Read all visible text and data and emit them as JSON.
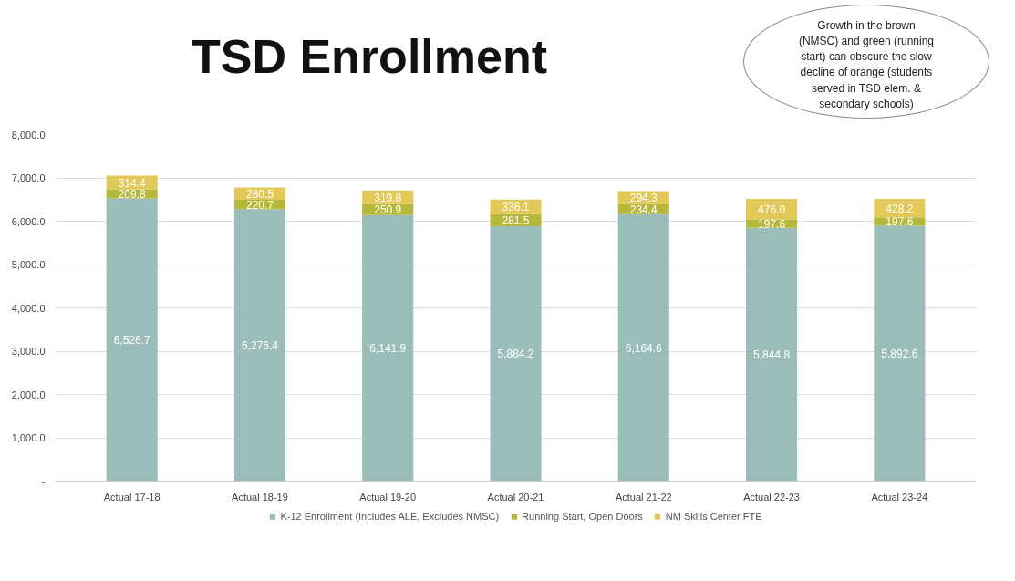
{
  "chart_data": {
    "type": "bar",
    "stacked": true,
    "title": "TSD Enrollment",
    "categories": [
      "Actual 17-18",
      "Actual 18-19",
      "Actual 19-20",
      "Actual 20-21",
      "Actual 21-22",
      "Actual 22-23",
      "Actual 23-24"
    ],
    "series": [
      {
        "name": "K-12 Enrollment (Includes ALE, Excludes NMSC)",
        "color": "#9bbdba",
        "values": [
          6526.7,
          6276.4,
          6141.9,
          5884.2,
          6164.6,
          5844.8,
          5892.6
        ],
        "value_labels": [
          "6,526.7",
          "6,276.4",
          "6,141.9",
          "5,884.2",
          "6,164.6",
          "5,844.8",
          "5,892.6"
        ]
      },
      {
        "name": "Running Start, Open Doors",
        "color": "#b5b83a",
        "values": [
          209.8,
          220.7,
          250.9,
          281.5,
          234.4,
          197.6,
          197.6
        ],
        "value_labels": [
          "209.8",
          "220.7",
          "250.9",
          "281.5",
          "234.4",
          "197.6",
          "197.6"
        ]
      },
      {
        "name": "NM Skills Center FTE",
        "color": "#e2c957",
        "values": [
          314.4,
          280.5,
          319.8,
          336.1,
          294.3,
          476.0,
          428.2
        ],
        "value_labels": [
          "314.4",
          "280.5",
          "319.8",
          "336.1",
          "294.3",
          "476.0",
          "428.2"
        ]
      }
    ],
    "ylim": [
      0,
      8000
    ],
    "yticks": [
      {
        "value": 0,
        "label": "-"
      },
      {
        "value": 1000,
        "label": "1,000.0"
      },
      {
        "value": 2000,
        "label": "2,000.0"
      },
      {
        "value": 3000,
        "label": "3,000.0"
      },
      {
        "value": 4000,
        "label": "4,000.0"
      },
      {
        "value": 5000,
        "label": "5,000.0"
      },
      {
        "value": 6000,
        "label": "6,000.0"
      },
      {
        "value": 7000,
        "label": "7,000.0"
      },
      {
        "value": 8000,
        "label": "8,000.0"
      }
    ],
    "grid": "y",
    "legend": "bottom",
    "annotations": [
      "Growth in the brown\n(NMSC) and green (running\nstart) can obscure the slow\ndecline of orange (students\nserved in TSD elem. &\nsecondary schools)"
    ]
  }
}
